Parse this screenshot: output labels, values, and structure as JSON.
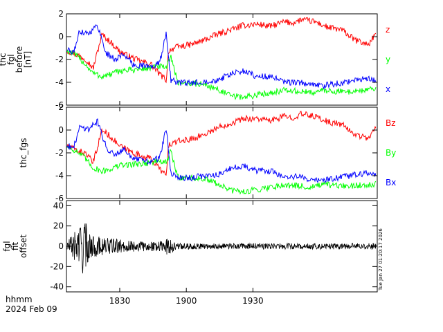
{
  "chart_data": [
    {
      "type": "line",
      "panel": "fgl-before",
      "ylabel": [
        "thc",
        "fgl",
        "before",
        "[nT]"
      ],
      "ylim": [
        -6,
        2
      ],
      "yticks": [
        2,
        0,
        -2,
        -4,
        -6
      ],
      "xlim_min": [
        1806,
        1946
      ],
      "xticks_min": [
        1830,
        1860,
        1890
      ],
      "series": [
        {
          "name": "z",
          "color": "#ff0000",
          "x": [
            1806,
            1810,
            1815,
            1818,
            1822,
            1826,
            1830,
            1835,
            1840,
            1844,
            1848,
            1851,
            1852,
            1856,
            1862,
            1868,
            1874,
            1880,
            1886,
            1892,
            1898,
            1904,
            1908,
            1912,
            1918,
            1924,
            1930,
            1936,
            1942,
            1946
          ],
          "y": [
            -1.2,
            -1.5,
            -2.0,
            -2.8,
            0.2,
            -0.5,
            -1.3,
            -1.8,
            -2.2,
            -2.4,
            -3.3,
            -3.8,
            -1.2,
            -0.9,
            -0.7,
            -0.3,
            0.2,
            0.6,
            1.0,
            1.1,
            0.9,
            1.3,
            1.2,
            1.5,
            1.3,
            0.8,
            0.6,
            -0.3,
            -0.7,
            0.5
          ]
        },
        {
          "name": "y",
          "color": "#00ff00",
          "x": [
            1806,
            1810,
            1814,
            1818,
            1822,
            1826,
            1830,
            1836,
            1842,
            1848,
            1851,
            1853,
            1856,
            1862,
            1868,
            1874,
            1880,
            1886,
            1892,
            1898,
            1904,
            1910,
            1916,
            1922,
            1928,
            1934,
            1940,
            1946
          ],
          "y": [
            -1.2,
            -1.6,
            -2.3,
            -3.2,
            -3.5,
            -3.3,
            -3.0,
            -2.9,
            -2.8,
            -2.6,
            -2.8,
            -1.6,
            -4.0,
            -4.1,
            -4.2,
            -4.6,
            -5.2,
            -5.3,
            -5.1,
            -4.9,
            -4.7,
            -4.8,
            -4.9,
            -4.7,
            -4.8,
            -4.8,
            -4.7,
            -4.6
          ]
        },
        {
          "name": "x",
          "color": "#0000ff",
          "x": [
            1806,
            1809,
            1812,
            1816,
            1820,
            1824,
            1828,
            1832,
            1836,
            1840,
            1844,
            1848,
            1851,
            1853,
            1856,
            1862,
            1868,
            1874,
            1880,
            1886,
            1892,
            1898,
            1904,
            1910,
            1916,
            1922,
            1928,
            1934,
            1940,
            1946
          ],
          "y": [
            -1.0,
            -1.5,
            0.5,
            0.3,
            1.0,
            -1.5,
            -2.0,
            -1.5,
            -2.5,
            -2.5,
            -2.7,
            -2.3,
            0.4,
            -3.8,
            -4.0,
            -4.1,
            -3.9,
            -3.8,
            -3.3,
            -3.0,
            -3.5,
            -3.5,
            -4.0,
            -4.0,
            -4.2,
            -4.3,
            -4.1,
            -3.9,
            -3.7,
            -3.8
          ]
        }
      ]
    },
    {
      "type": "line",
      "panel": "fgs",
      "ylabel": [
        "thc_fgs"
      ],
      "ylim": [
        -6,
        2
      ],
      "yticks": [
        2,
        0,
        -2,
        -4,
        -6
      ],
      "xlim_min": [
        1806,
        1946
      ],
      "xticks_min": [
        1830,
        1860,
        1890
      ],
      "series": [
        {
          "name": "Bz",
          "color": "#ff0000",
          "x": [
            1806,
            1810,
            1815,
            1818,
            1822,
            1826,
            1830,
            1835,
            1840,
            1844,
            1848,
            1851,
            1852,
            1856,
            1862,
            1868,
            1874,
            1880,
            1886,
            1892,
            1898,
            1904,
            1908,
            1912,
            1918,
            1924,
            1930,
            1936,
            1942,
            1946
          ],
          "y": [
            -1.4,
            -1.7,
            -2.1,
            -2.9,
            0.0,
            -0.6,
            -1.4,
            -1.9,
            -2.3,
            -2.5,
            -3.4,
            -4.0,
            -1.3,
            -1.0,
            -0.8,
            -0.4,
            0.2,
            0.6,
            1.0,
            1.0,
            0.8,
            1.2,
            1.1,
            1.4,
            1.2,
            0.7,
            0.5,
            -0.4,
            -0.7,
            0.3
          ]
        },
        {
          "name": "By",
          "color": "#00ff00",
          "x": [
            1806,
            1810,
            1814,
            1818,
            1822,
            1826,
            1830,
            1836,
            1842,
            1848,
            1851,
            1853,
            1856,
            1862,
            1868,
            1874,
            1880,
            1886,
            1892,
            1898,
            1904,
            1910,
            1916,
            1922,
            1928,
            1934,
            1940,
            1946
          ],
          "y": [
            -1.4,
            -1.8,
            -2.4,
            -3.3,
            -3.6,
            -3.4,
            -3.1,
            -3.0,
            -2.9,
            -2.7,
            -2.9,
            -1.8,
            -4.1,
            -4.2,
            -4.3,
            -4.7,
            -5.3,
            -5.4,
            -5.2,
            -5.0,
            -4.8,
            -4.9,
            -5.0,
            -4.8,
            -4.9,
            -4.9,
            -4.8,
            -4.7
          ]
        },
        {
          "name": "Bx",
          "color": "#0000ff",
          "x": [
            1806,
            1809,
            1812,
            1816,
            1820,
            1824,
            1828,
            1832,
            1836,
            1840,
            1844,
            1848,
            1851,
            1853,
            1856,
            1862,
            1868,
            1874,
            1880,
            1886,
            1892,
            1898,
            1904,
            1910,
            1916,
            1922,
            1928,
            1934,
            1940,
            1946
          ],
          "y": [
            -1.2,
            -1.7,
            0.3,
            0.1,
            0.8,
            -1.6,
            -2.1,
            -1.6,
            -2.6,
            -2.6,
            -2.8,
            -2.4,
            0.2,
            -3.9,
            -4.1,
            -4.2,
            -4.0,
            -3.9,
            -3.4,
            -3.1,
            -3.6,
            -3.6,
            -4.1,
            -4.1,
            -4.3,
            -4.4,
            -4.2,
            -4.0,
            -3.8,
            -3.9
          ]
        }
      ]
    },
    {
      "type": "line",
      "panel": "fit-offset",
      "ylabel": [
        "fgl",
        "fit",
        "offset"
      ],
      "ylim": [
        -45,
        45
      ],
      "yticks": [
        40,
        20,
        0,
        -20,
        -40
      ],
      "xlim_min": [
        1806,
        1946
      ],
      "xticks_min": [
        1830,
        1860,
        1890
      ],
      "series": [
        {
          "color": "#000000",
          "envelope": true,
          "x": [
            1806,
            1809,
            1812,
            1814,
            1816,
            1818,
            1822,
            1826,
            1832,
            1838,
            1844,
            1848,
            1852,
            1856,
            1862,
            1868,
            1874,
            1880,
            1886,
            1892,
            1898,
            1904,
            1910,
            1916,
            1922,
            1928,
            1934,
            1940,
            1946
          ],
          "amp": [
            7,
            12,
            24,
            30,
            14,
            11,
            9,
            8,
            6,
            5,
            5,
            5,
            9,
            3,
            3,
            3,
            3,
            3,
            3,
            3,
            3,
            3,
            3,
            3,
            3,
            3,
            3,
            3,
            3
          ]
        }
      ]
    }
  ],
  "axis": {
    "tick_labels": [
      "1830",
      "1900",
      "1930"
    ],
    "label_line1": "hhmm",
    "label_line2": "2024 Feb 09"
  },
  "stamp": "Tue Jan 27 01:20:17 2026"
}
